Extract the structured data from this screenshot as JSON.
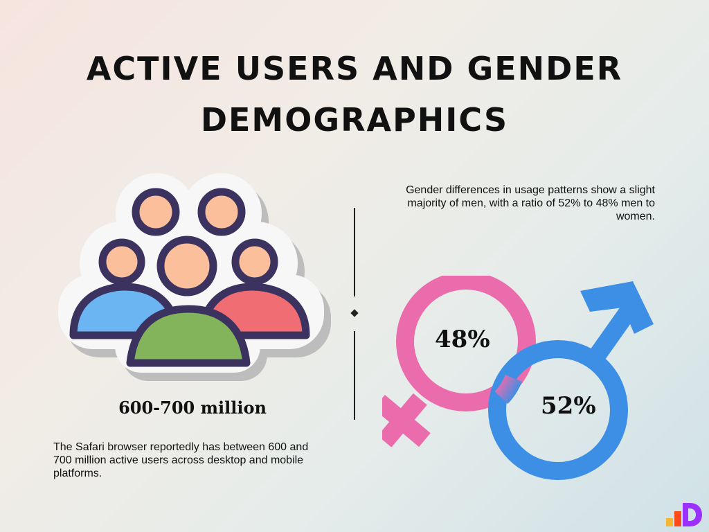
{
  "title": "ACTIVE USERS AND GENDER DEMOGRAPHICS",
  "users": {
    "stat": "600-700 million",
    "description": "The Safari browser reportedly has between 600 and 700 million active users across desktop and mobile platforms.",
    "icon": "users-group-icon"
  },
  "gender": {
    "description": "Gender differences in usage patterns show a slight majority of men, with a ratio of 52% to 48% men to women.",
    "female_percent": "48%",
    "male_percent": "52%",
    "female_color": "#ea6cad",
    "male_color": "#3d8fe5"
  },
  "logo": "brand-logo-icon"
}
